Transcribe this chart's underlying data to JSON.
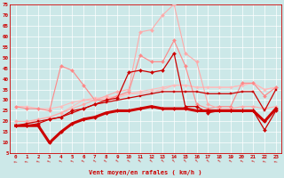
{
  "title": "",
  "xlabel": "Vent moyen/en rafales ( km/h )",
  "background_color": "#cce8e8",
  "grid_color": "#ffffff",
  "text_color": "#cc0000",
  "xlim": [
    -0.5,
    23.5
  ],
  "ylim": [
    5,
    75
  ],
  "yticks": [
    5,
    10,
    15,
    20,
    25,
    30,
    35,
    40,
    45,
    50,
    55,
    60,
    65,
    70,
    75
  ],
  "xticks": [
    0,
    1,
    2,
    3,
    4,
    5,
    6,
    7,
    8,
    9,
    10,
    11,
    12,
    13,
    14,
    15,
    16,
    17,
    18,
    19,
    20,
    21,
    22,
    23
  ],
  "lines": [
    {
      "x": [
        0,
        1,
        2,
        3,
        4,
        5,
        6,
        7,
        8,
        9,
        10,
        11,
        12,
        13,
        14,
        15,
        16,
        17,
        18,
        19,
        20,
        21,
        22,
        23
      ],
      "y": [
        18,
        19,
        21,
        22,
        24,
        27,
        30,
        30,
        31,
        31,
        33,
        33,
        34,
        35,
        37,
        37,
        36,
        36,
        36,
        36,
        37,
        38,
        35,
        36
      ],
      "color": "#ffbbbb",
      "linewidth": 0.8,
      "marker": null,
      "markersize": 0,
      "zorder": 2
    },
    {
      "x": [
        0,
        1,
        2,
        3,
        4,
        5,
        6,
        7,
        8,
        9,
        10,
        11,
        12,
        13,
        14,
        15,
        16,
        17,
        18,
        19,
        20,
        21,
        22,
        23
      ],
      "y": [
        27,
        27,
        26,
        26,
        27,
        29,
        30,
        31,
        31,
        32,
        33,
        34,
        35,
        36,
        37,
        37,
        36,
        36,
        36,
        36,
        37,
        38,
        35,
        36
      ],
      "color": "#ffbbbb",
      "linewidth": 0.8,
      "marker": "D",
      "markersize": 1.8,
      "zorder": 2
    },
    {
      "x": [
        0,
        1,
        2,
        3,
        4,
        5,
        6,
        7,
        8,
        9,
        10,
        11,
        12,
        13,
        14,
        15,
        16,
        17,
        18,
        19,
        20,
        21,
        22,
        23
      ],
      "y": [
        27,
        26,
        26,
        25,
        46,
        44,
        37,
        30,
        30,
        32,
        34,
        51,
        48,
        48,
        58,
        46,
        28,
        26,
        27,
        27,
        38,
        38,
        32,
        36
      ],
      "color": "#ff8888",
      "linewidth": 0.8,
      "marker": "D",
      "markersize": 2.0,
      "zorder": 3
    },
    {
      "x": [
        0,
        1,
        2,
        3,
        4,
        5,
        6,
        7,
        8,
        9,
        10,
        11,
        12,
        13,
        14,
        15,
        16,
        17,
        18,
        19,
        20,
        21,
        22,
        23
      ],
      "y": [
        20,
        20,
        21,
        22,
        24,
        26,
        28,
        30,
        32,
        34,
        35,
        62,
        63,
        70,
        75,
        52,
        48,
        28,
        26,
        26,
        27,
        27,
        26,
        27
      ],
      "color": "#ffaaaa",
      "linewidth": 0.8,
      "marker": "D",
      "markersize": 2.0,
      "zorder": 3
    },
    {
      "x": [
        0,
        1,
        2,
        3,
        4,
        5,
        6,
        7,
        8,
        9,
        10,
        11,
        12,
        13,
        14,
        15,
        16,
        17,
        18,
        19,
        20,
        21,
        22,
        23
      ],
      "y": [
        18,
        18,
        19,
        21,
        22,
        25,
        26,
        28,
        30,
        31,
        43,
        44,
        43,
        44,
        52,
        27,
        27,
        24,
        25,
        25,
        25,
        25,
        16,
        25
      ],
      "color": "#cc0000",
      "linewidth": 0.9,
      "marker": "D",
      "markersize": 2.0,
      "zorder": 5
    },
    {
      "x": [
        0,
        1,
        2,
        3,
        4,
        5,
        6,
        7,
        8,
        9,
        10,
        11,
        12,
        13,
        14,
        15,
        16,
        17,
        18,
        19,
        20,
        21,
        22,
        23
      ],
      "y": [
        18,
        19,
        20,
        21,
        22,
        24,
        26,
        28,
        29,
        30,
        31,
        32,
        33,
        34,
        34,
        34,
        34,
        33,
        33,
        33,
        34,
        34,
        25,
        35
      ],
      "color": "#cc0000",
      "linewidth": 0.9,
      "marker": "s",
      "markersize": 1.5,
      "zorder": 4
    },
    {
      "x": [
        0,
        1,
        2,
        3,
        4,
        5,
        6,
        7,
        8,
        9,
        10,
        11,
        12,
        13,
        14,
        15,
        16,
        17,
        18,
        19,
        20,
        21,
        22,
        23
      ],
      "y": [
        18,
        18,
        18,
        10,
        15,
        19,
        21,
        22,
        24,
        25,
        25,
        26,
        27,
        26,
        26,
        26,
        25,
        25,
        25,
        25,
        25,
        25,
        20,
        26
      ],
      "color": "#cc0000",
      "linewidth": 2.2,
      "marker": "D",
      "markersize": 2.0,
      "zorder": 6
    }
  ],
  "wind_arrow_angles": [
    10,
    15,
    20,
    25,
    30,
    30,
    35,
    40,
    40,
    45,
    45,
    50,
    50,
    50,
    55,
    55,
    55,
    50,
    45,
    40,
    35,
    30,
    20,
    15
  ]
}
